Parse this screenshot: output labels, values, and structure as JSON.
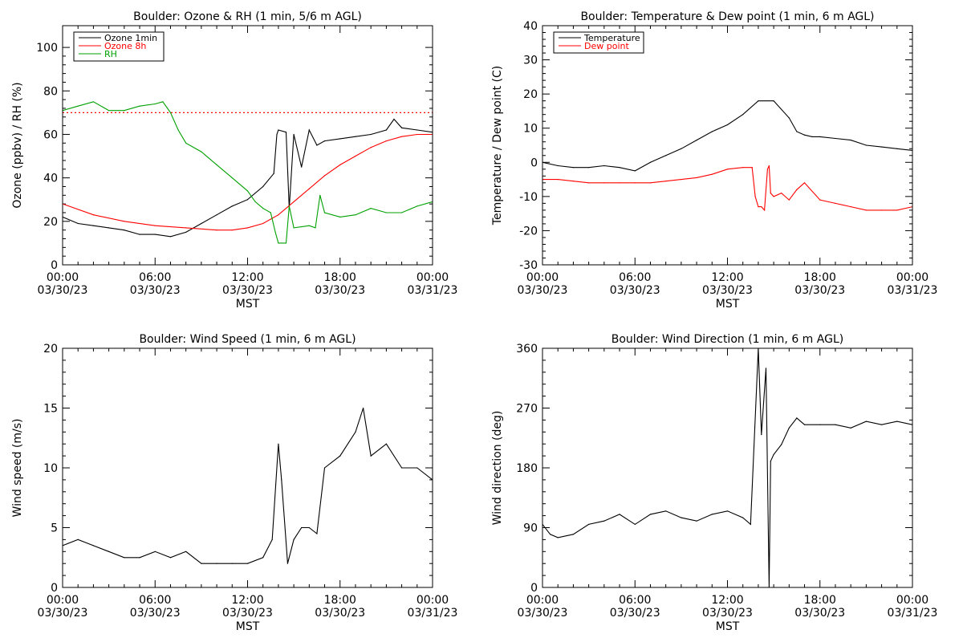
{
  "figure": {
    "background": "#ffffff",
    "panels": 4
  },
  "chart_data": [
    {
      "type": "line",
      "title": "Boulder: Ozone & RH (1 min, 5/6 m AGL)",
      "xlabel": "MST",
      "ylabel": "Ozone (ppbv) / RH (%)",
      "xlim": [
        0,
        24
      ],
      "ylim": [
        0,
        110
      ],
      "yticks": [
        0,
        20,
        40,
        60,
        80,
        100
      ],
      "xtick_hours": [
        "00:00",
        "06:00",
        "12:00",
        "18:00",
        "00:00"
      ],
      "xtick_dates": [
        "03/30/23",
        "03/30/23",
        "03/30/23",
        "03/30/23",
        "03/31/23"
      ],
      "legend_position": "top-left",
      "reference_line": {
        "y": 70,
        "style": "dotted",
        "color": "#ff0000"
      },
      "series": [
        {
          "name": "Ozone 1min",
          "color": "#000000",
          "x": [
            0,
            1,
            2,
            3,
            4,
            5,
            6,
            7,
            8,
            9,
            10,
            11,
            12,
            13,
            13.7,
            13.9,
            14.0,
            14.5,
            14.7,
            15.0,
            15.5,
            16.0,
            16.5,
            17.0,
            18,
            19,
            20,
            21,
            21.5,
            22,
            23,
            24
          ],
          "values": [
            22,
            19,
            18,
            17,
            16,
            14,
            14,
            13,
            15,
            19,
            23,
            27,
            30,
            36,
            42,
            60,
            62,
            61,
            26,
            60,
            45,
            62,
            55,
            57,
            58,
            59,
            60,
            62,
            67,
            63,
            62,
            61
          ]
        },
        {
          "name": "Ozone 8h",
          "color": "#ff0000",
          "x": [
            0,
            2,
            4,
            6,
            8,
            10,
            11,
            12,
            13,
            14,
            15,
            16,
            17,
            18,
            19,
            20,
            21,
            22,
            23,
            24
          ],
          "values": [
            28,
            23,
            20,
            18,
            17,
            16,
            16,
            17,
            19,
            23,
            29,
            35,
            41,
            46,
            50,
            54,
            57,
            59,
            60,
            60
          ]
        },
        {
          "name": "RH",
          "color": "#00a000",
          "x": [
            0,
            1,
            2,
            3,
            4,
            5,
            6,
            6.5,
            7,
            7.5,
            8,
            9,
            10,
            11,
            12,
            12.5,
            13,
            13.5,
            13.8,
            14.0,
            14.5,
            14.7,
            15,
            16,
            16.4,
            16.7,
            17,
            18,
            19,
            20,
            21,
            22,
            23,
            24
          ],
          "values": [
            71,
            73,
            75,
            71,
            71,
            73,
            74,
            75,
            70,
            62,
            56,
            52,
            46,
            40,
            34,
            29,
            26,
            24,
            15,
            10,
            10,
            27,
            17,
            18,
            17,
            32,
            24,
            22,
            23,
            26,
            24,
            24,
            27,
            29
          ]
        }
      ]
    },
    {
      "type": "line",
      "title": "Boulder: Temperature & Dew point (1 min, 6 m AGL)",
      "xlabel": "MST",
      "ylabel": "Temperature / Dew point (C)",
      "xlim": [
        0,
        24
      ],
      "ylim": [
        -30,
        40
      ],
      "yticks": [
        -30,
        -20,
        -10,
        0,
        10,
        20,
        30,
        40
      ],
      "xtick_hours": [
        "00:00",
        "06:00",
        "12:00",
        "18:00",
        "00:00"
      ],
      "xtick_dates": [
        "03/30/23",
        "03/30/23",
        "03/30/23",
        "03/30/23",
        "03/31/23"
      ],
      "legend_position": "top-left",
      "series": [
        {
          "name": "Temperature",
          "color": "#000000",
          "x": [
            0,
            1,
            2,
            3,
            4,
            5,
            6,
            7,
            8,
            9,
            10,
            11,
            12,
            13,
            14,
            15,
            16,
            16.5,
            17,
            17.5,
            18,
            19,
            20,
            21,
            22,
            23,
            24
          ],
          "values": [
            0,
            -1,
            -1.5,
            -1.5,
            -1,
            -1.5,
            -2.5,
            0,
            2,
            4,
            6.5,
            9,
            11,
            14,
            18,
            18,
            13,
            9,
            8,
            7.5,
            7.5,
            7,
            6.5,
            5,
            4.5,
            4,
            3.5
          ]
        },
        {
          "name": "Dew point",
          "color": "#ff0000",
          "x": [
            0,
            1,
            2,
            3,
            4,
            5,
            6,
            7,
            8,
            9,
            10,
            11,
            12,
            13,
            13.6,
            13.8,
            14.0,
            14.2,
            14.4,
            14.6,
            14.7,
            14.8,
            15,
            15.5,
            16,
            16.5,
            17,
            18,
            19,
            20,
            21,
            22,
            23,
            24
          ],
          "values": [
            -5,
            -5,
            -5.5,
            -6,
            -6,
            -6,
            -6,
            -6,
            -5.5,
            -5,
            -4.5,
            -3.5,
            -2,
            -1.5,
            -1.5,
            -10,
            -13,
            -13,
            -14,
            -2,
            -1,
            -9,
            -10,
            -9,
            -11,
            -8,
            -6,
            -11,
            -12,
            -13,
            -14,
            -14,
            -14,
            -13
          ]
        }
      ]
    },
    {
      "type": "line",
      "title": "Boulder: Wind Speed (1 min, 6 m AGL)",
      "xlabel": "MST",
      "ylabel": "Wind speed (m/s)",
      "xlim": [
        0,
        24
      ],
      "ylim": [
        0,
        20
      ],
      "yticks": [
        0,
        5,
        10,
        15,
        20
      ],
      "xtick_hours": [
        "00:00",
        "06:00",
        "12:00",
        "18:00",
        "00:00"
      ],
      "xtick_dates": [
        "03/30/23",
        "03/30/23",
        "03/30/23",
        "03/30/23",
        "03/31/23"
      ],
      "series": [
        {
          "name": "",
          "color": "#000000",
          "x": [
            0,
            1,
            2,
            3,
            4,
            5,
            6,
            7,
            8,
            9,
            10,
            11,
            12,
            13,
            13.6,
            14.0,
            14.2,
            14.6,
            15,
            15.5,
            16,
            16.5,
            17,
            18,
            19,
            19.5,
            20,
            21,
            22,
            23,
            24
          ],
          "values": [
            3.5,
            4,
            3.5,
            3,
            2.5,
            2.5,
            3,
            2.5,
            3,
            2,
            2,
            2,
            2,
            2.5,
            4,
            12,
            9,
            2,
            4,
            5,
            5,
            4.5,
            10,
            11,
            13,
            15,
            11,
            12,
            10,
            10,
            9
          ]
        }
      ]
    },
    {
      "type": "line",
      "title": "Boulder: Wind Direction (1 min, 6 m AGL)",
      "xlabel": "MST",
      "ylabel": "Wind direction (deg)",
      "xlim": [
        0,
        24
      ],
      "ylim": [
        0,
        360
      ],
      "yticks": [
        0,
        90,
        180,
        270,
        360
      ],
      "xtick_hours": [
        "00:00",
        "06:00",
        "12:00",
        "18:00",
        "00:00"
      ],
      "xtick_dates": [
        "03/30/23",
        "03/30/23",
        "03/30/23",
        "03/30/23",
        "03/31/23"
      ],
      "series": [
        {
          "name": "",
          "color": "#000000",
          "x": [
            0,
            0.5,
            1,
            2,
            3,
            4,
            5,
            6,
            7,
            8,
            9,
            10,
            11,
            12,
            13,
            13.5,
            14.0,
            14.2,
            14.5,
            14.7,
            14.8,
            15,
            15.5,
            16,
            16.5,
            17,
            18,
            19,
            20,
            21,
            22,
            23,
            24
          ],
          "values": [
            95,
            80,
            75,
            80,
            95,
            100,
            110,
            95,
            110,
            115,
            105,
            100,
            110,
            115,
            105,
            95,
            360,
            230,
            330,
            0,
            190,
            200,
            215,
            240,
            255,
            245,
            245,
            245,
            240,
            250,
            245,
            250,
            245
          ]
        }
      ]
    }
  ]
}
